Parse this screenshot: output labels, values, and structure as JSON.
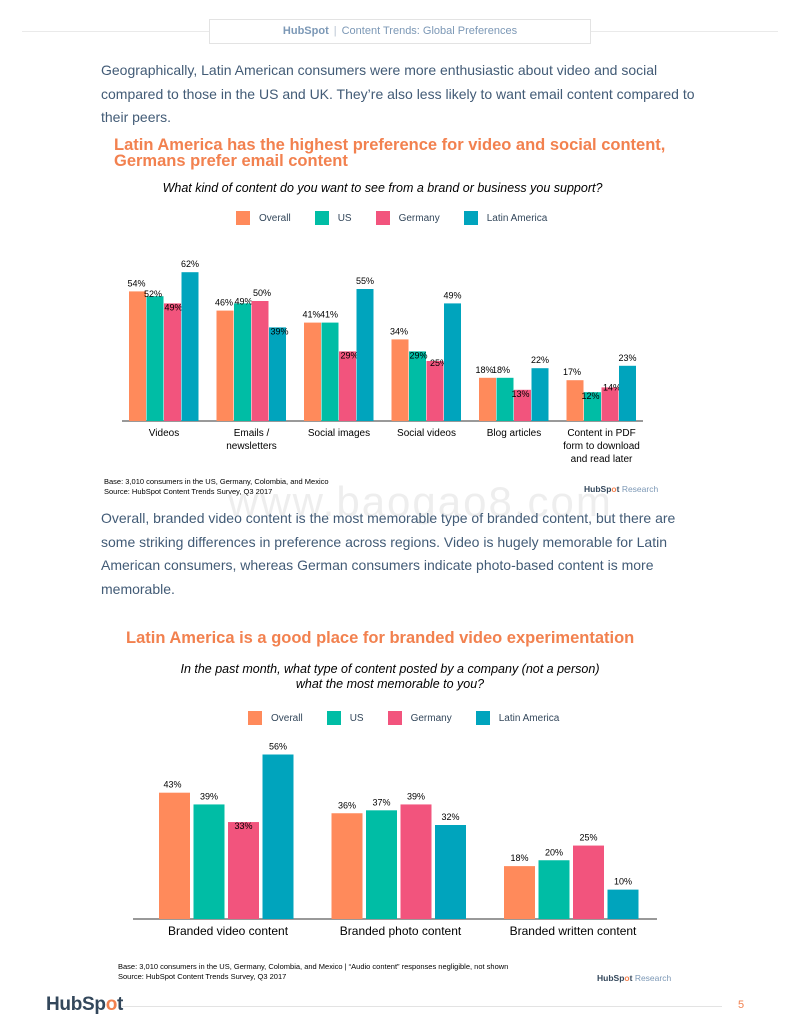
{
  "header": {
    "brand": "HubSpot",
    "separator": "|",
    "title": "Content Trends: Global Preferences"
  },
  "paragraph_1": "Geographically, Latin American consumers were more enthusiastic about video and social compared to those in the US and UK. They’re also less likely to want email content compared to their peers.",
  "chart1": {
    "title": "Latin America has the highest preference for video and social content, Germans prefer email content",
    "question": "What kind of content do you want to see from a brand or business you support?",
    "base": "Base: 3,010 consumers in the US, Germany, Colombia, and Mexico",
    "source": "Source: HubSpot Content Trends Survey, Q3 2017"
  },
  "paragraph_2": "Overall, branded video content is the most memorable type of branded content, but there are some striking differences in preference across regions. Video is hugely memorable for Latin American consumers, whereas German consumers indicate photo-based content is more memorable.",
  "chart2": {
    "title": "Latin America is a good place for branded video experimentation",
    "question_line1": "In the past month, what type of content posted by a company (not a person)",
    "question_line2": "what the most memorable to you?",
    "base": "Base: 3,010 consumers in the US, Germany, Colombia, and Mexico | “Audio content” responses negligible, not shown",
    "source": "Source: HubSpot Content Trends Survey, Q3 2017"
  },
  "branding": {
    "hub": "HubSp",
    "dot": "o",
    "t": "t",
    "research": "Research"
  },
  "watermark": "www.baogao8.com",
  "footer": {
    "logo_hub": "HubSp",
    "logo_dot": "o",
    "logo_t": "t",
    "page_number": "5"
  },
  "colors": {
    "Overall": "#ff8a5b",
    "US": "#00bda5",
    "Germany": "#f2547d",
    "Latin America": "#00a4bd",
    "title_orange": "#f2814f"
  },
  "chart_data": [
    {
      "type": "bar",
      "legend": "top",
      "categories": [
        "Videos",
        "Emails / newsletters",
        "Social images",
        "Social videos",
        "Blog articles",
        "Content in PDF form to download and read later"
      ],
      "category_lines": [
        [
          "Videos"
        ],
        [
          "Emails /",
          "newsletters"
        ],
        [
          "Social images"
        ],
        [
          "Social videos"
        ],
        [
          "Blog articles"
        ],
        [
          "Content in PDF",
          "form to download",
          "and read later"
        ]
      ],
      "series": [
        {
          "name": "Overall",
          "values": [
            54,
            46,
            41,
            34,
            18,
            17
          ]
        },
        {
          "name": "US",
          "values": [
            52,
            49,
            41,
            29,
            18,
            12
          ]
        },
        {
          "name": "Germany",
          "values": [
            49,
            50,
            29,
            25,
            13,
            14
          ]
        },
        {
          "name": "Latin America",
          "values": [
            62,
            39,
            55,
            49,
            22,
            23
          ]
        }
      ],
      "value_suffix": "%",
      "ylim": [
        0,
        70
      ]
    },
    {
      "type": "bar",
      "legend": "top",
      "categories": [
        "Branded video content",
        "Branded photo content",
        "Branded written content"
      ],
      "series": [
        {
          "name": "Overall",
          "values": [
            43,
            36,
            18
          ]
        },
        {
          "name": "US",
          "values": [
            39,
            37,
            20
          ]
        },
        {
          "name": "Germany",
          "values": [
            33,
            39,
            25
          ]
        },
        {
          "name": "Latin America",
          "values": [
            56,
            32,
            10
          ]
        }
      ],
      "value_suffix": "%",
      "ylim": [
        0,
        64
      ]
    }
  ]
}
